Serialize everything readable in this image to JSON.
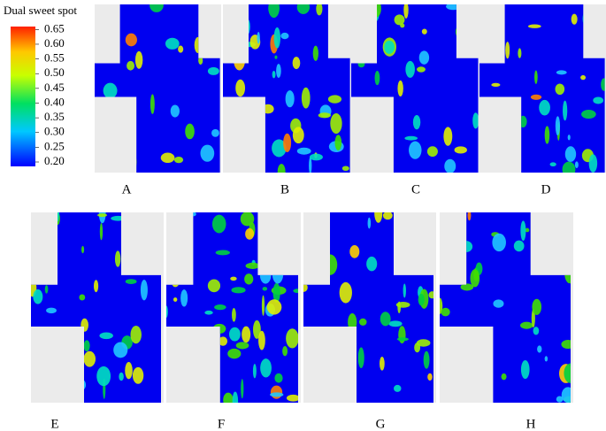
{
  "colorbar": {
    "title": "Dual sweet spot",
    "range": [
      0.185,
      0.66
    ],
    "ticks": [
      0.65,
      {
        "value": 0.6,
        "label": "0.60"
      },
      0.55,
      {
        "value": 0.5,
        "label": "0.50"
      },
      0.45,
      {
        "value": 0.4,
        "label": "0.40"
      },
      0.35,
      {
        "value": 0.3,
        "label": "0.30"
      },
      0.25,
      {
        "value": 0.2,
        "label": "0.20"
      }
    ]
  },
  "panels": [
    {
      "label": "A"
    },
    {
      "label": "B"
    },
    {
      "label": "C"
    },
    {
      "label": "D"
    },
    {
      "label": "E"
    },
    {
      "label": "F"
    },
    {
      "label": "G"
    },
    {
      "label": "H"
    }
  ]
}
